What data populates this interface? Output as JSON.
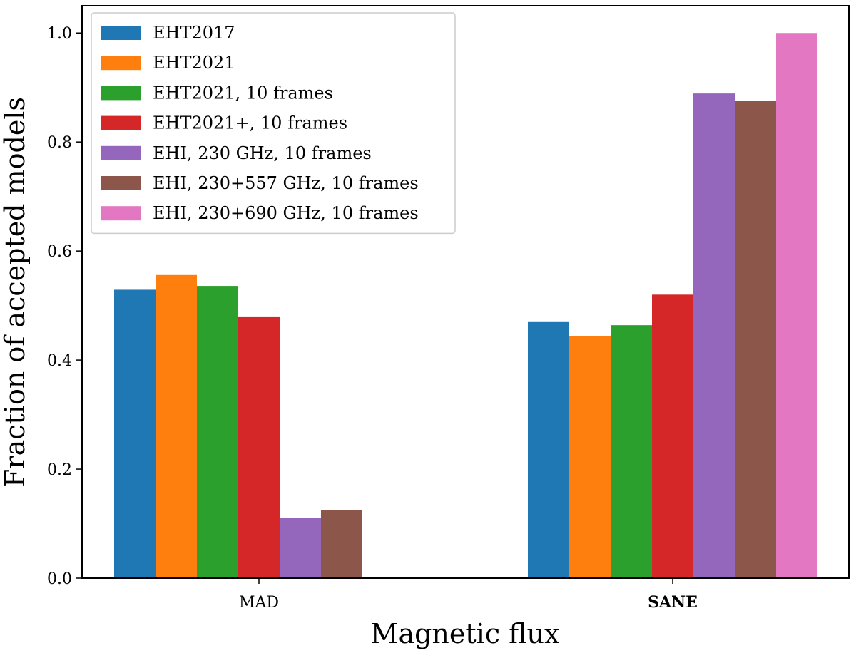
{
  "chart_data": {
    "type": "bar",
    "title": "",
    "xlabel": "Magnetic flux",
    "ylabel": "Fraction of accepted models",
    "categories": [
      "MAD",
      "SANE"
    ],
    "bold_categories": [
      "SANE"
    ],
    "ylim": [
      0.0,
      1.05
    ],
    "yticks": [
      0.0,
      0.2,
      0.4,
      0.6,
      0.8,
      1.0
    ],
    "ytick_labels": [
      "0.0",
      "0.2",
      "0.4",
      "0.6",
      "0.8",
      "1.0"
    ],
    "grid": false,
    "legend_position": "top-left",
    "series": [
      {
        "name": "EHT2017",
        "color": "#1f77b4",
        "values": [
          0.529,
          0.471
        ]
      },
      {
        "name": "EHT2021",
        "color": "#ff7f0e",
        "values": [
          0.556,
          0.444
        ]
      },
      {
        "name": "EHT2021, 10 frames",
        "color": "#2ca02c",
        "values": [
          0.536,
          0.464
        ]
      },
      {
        "name": "EHT2021+, 10 frames",
        "color": "#d62728",
        "values": [
          0.48,
          0.52
        ]
      },
      {
        "name": "EHI, 230 GHz, 10 frames",
        "color": "#9467bd",
        "values": [
          0.111,
          0.889
        ]
      },
      {
        "name": "EHI, 230+557 GHz, 10 frames",
        "color": "#8c564b",
        "values": [
          0.125,
          0.875
        ]
      },
      {
        "name": "EHI, 230+690 GHz, 10 frames",
        "color": "#e377c2",
        "values": [
          0.0,
          1.0
        ]
      }
    ]
  }
}
